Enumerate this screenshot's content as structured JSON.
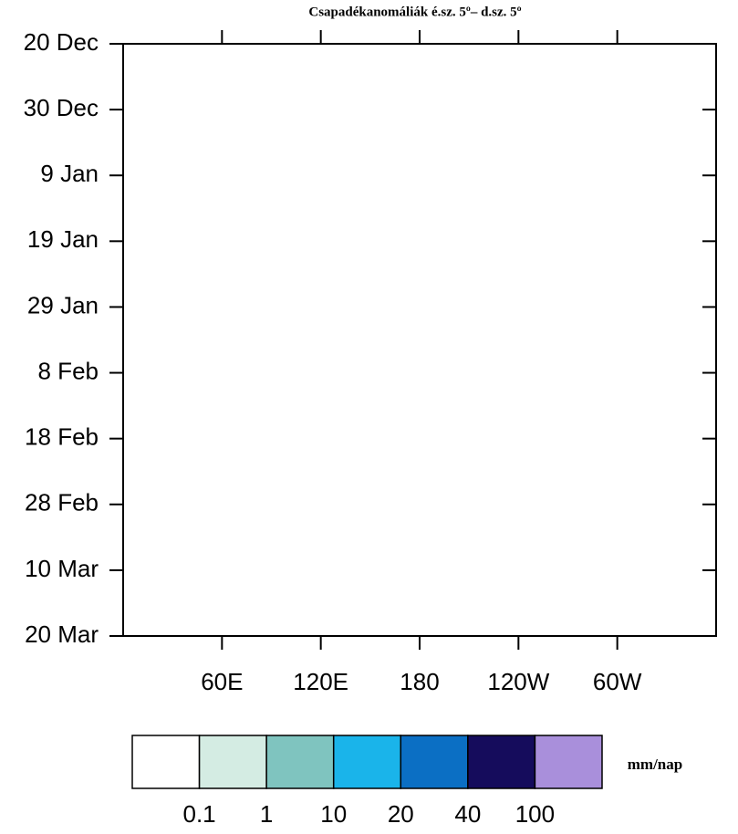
{
  "chart_data": {
    "type": "hovmoller",
    "title": "Csapadékanomáliák é.sz. 5º– d.sz. 5º",
    "xlim": [
      0,
      360
    ],
    "xticks": [
      {
        "value": 60,
        "label": "60E"
      },
      {
        "value": 120,
        "label": "120E"
      },
      180,
      {
        "value": 240,
        "label": "120W"
      },
      {
        "value": 300,
        "label": "60W"
      }
    ],
    "ylim": [
      0,
      90
    ],
    "yticks": [
      {
        "value": 0,
        "label": "20 Dec"
      },
      {
        "value": 10,
        "label": "30 Dec"
      },
      {
        "value": 20,
        "label": "9 Jan"
      },
      {
        "value": 30,
        "label": "19 Jan"
      },
      {
        "value": 40,
        "label": "29 Jan"
      },
      {
        "value": 50,
        "label": "8 Feb"
      },
      {
        "value": 60,
        "label": "18 Feb"
      },
      {
        "value": 70,
        "label": "28 Feb"
      },
      {
        "value": 80,
        "label": "10 Mar"
      },
      {
        "value": 90,
        "label": "20 Mar"
      }
    ],
    "colorbar": {
      "levels": [
        0.1,
        1,
        10,
        20,
        40,
        100
      ],
      "colors": [
        "#ffffff",
        "#d4ece3",
        "#7fc4bf",
        "#1ab4ea",
        "#0b6fc4",
        "#150c5c",
        "#a98fdb"
      ],
      "label": "mm/nap"
    }
  }
}
